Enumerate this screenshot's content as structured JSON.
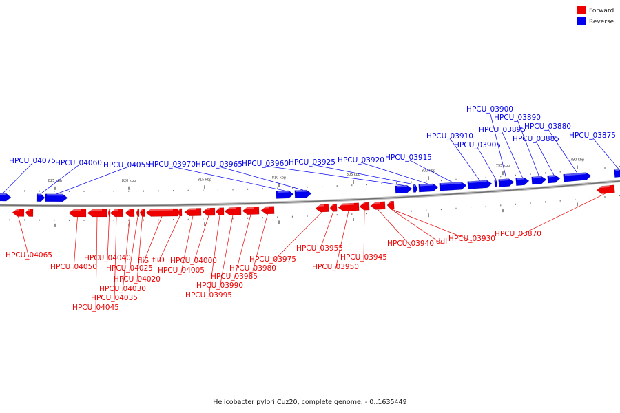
{
  "caption": "Helicobacter pylori Cuz20, complete genome. - 0..1635449",
  "legend": [
    {
      "label": "Forward",
      "color": "#ee0000"
    },
    {
      "label": "Reverse",
      "color": "#0000ee"
    }
  ],
  "colors": {
    "forward": "#ee0000",
    "reverse": "#0000ee",
    "backbone": "#888888"
  },
  "scale_ticks": [
    "825 kbp",
    "820 kbp",
    "815 kbp",
    "810 kbp",
    "805 kbp",
    "800 kbp",
    "795 kbp",
    "790 kbp"
  ],
  "reverse_labels": [
    "HPCU_04075",
    "HPCU_04060",
    "HPCU_04055",
    "HPCU_03970",
    "HPCU_03965",
    "HPCU_03960",
    "HPCU_03925",
    "HPCU_03920",
    "HPCU_03915",
    "HPCU_03910",
    "HPCU_03905",
    "HPCU_03900",
    "HPCU_03895",
    "HPCU_03890",
    "HPCU_03885",
    "HPCU_03880",
    "HPCU_03875"
  ],
  "forward_labels": [
    "HPCU_04065",
    "HPCU_04050",
    "HPCU_04045",
    "HPCU_04040",
    "HPCU_04035",
    "HPCU_04030",
    "HPCU_04025",
    "HPCU_04020",
    "fliS",
    "fliD",
    "HPCU_04005",
    "HPCU_04000",
    "HPCU_03995",
    "HPCU_03990",
    "HPCU_03985",
    "HPCU_03980",
    "HPCU_03975",
    "HPCU_03955",
    "HPCU_03950",
    "HPCU_03945",
    "HPCU_03940",
    "ddl",
    "HPCU_03930",
    "HPCU_03870"
  ]
}
